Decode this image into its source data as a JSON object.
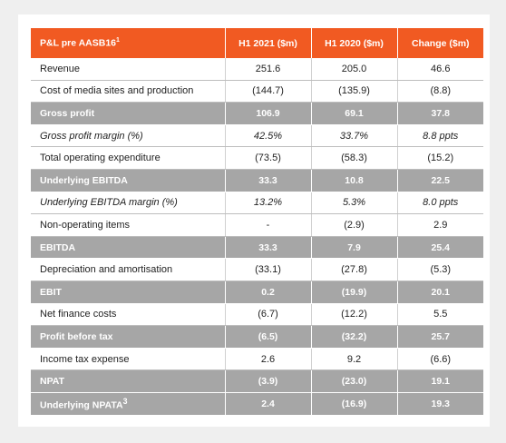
{
  "table": {
    "headers": {
      "label": "P&L pre AASB16",
      "label_sup": "1",
      "col1": "H1 2021 ($m)",
      "col2": "H1 2020 ($m)",
      "col3": "Change ($m)"
    },
    "rows": [
      {
        "label": "Revenue",
        "v1": "251.6",
        "v2": "205.0",
        "v3": "46.6",
        "style": "normal"
      },
      {
        "label": "Cost of media sites and production",
        "v1": "(144.7)",
        "v2": "(135.9)",
        "v3": "(8.8)",
        "style": "normal"
      },
      {
        "label": "Gross profit",
        "v1": "106.9",
        "v2": "69.1",
        "v3": "37.8",
        "style": "shaded"
      },
      {
        "label": "Gross profit margin (%)",
        "v1": "42.5%",
        "v2": "33.7%",
        "v3": "8.8 ppts",
        "style": "italic"
      },
      {
        "label": "Total operating expenditure",
        "v1": "(73.5)",
        "v2": "(58.3)",
        "v3": "(15.2)",
        "style": "normal"
      },
      {
        "label": "Underlying EBITDA",
        "v1": "33.3",
        "v2": "10.8",
        "v3": "22.5",
        "style": "shaded"
      },
      {
        "label": "Underlying EBITDA margin (%)",
        "v1": "13.2%",
        "v2": "5.3%",
        "v3": "8.0 ppts",
        "style": "italic"
      },
      {
        "label": "Non-operating items",
        "v1": "-",
        "v2": "(2.9)",
        "v3": "2.9",
        "style": "normal"
      },
      {
        "label": "EBITDA",
        "v1": "33.3",
        "v2": "7.9",
        "v3": "25.4",
        "style": "shaded"
      },
      {
        "label": "Depreciation and amortisation",
        "v1": "(33.1)",
        "v2": "(27.8)",
        "v3": "(5.3)",
        "style": "normal"
      },
      {
        "label": "EBIT",
        "v1": "0.2",
        "v2": "(19.9)",
        "v3": "20.1",
        "style": "shaded"
      },
      {
        "label": "Net finance costs",
        "v1": "(6.7)",
        "v2": "(12.2)",
        "v3": "5.5",
        "style": "normal"
      },
      {
        "label": "Profit before tax",
        "v1": "(6.5)",
        "v2": "(32.2)",
        "v3": "25.7",
        "style": "shaded"
      },
      {
        "label": "Income tax expense",
        "v1": "2.6",
        "v2": "9.2",
        "v3": "(6.6)",
        "style": "normal"
      },
      {
        "label": "NPAT",
        "v1": "(3.9)",
        "v2": "(23.0)",
        "v3": "19.1",
        "style": "shaded"
      },
      {
        "label": "Underlying NPATA",
        "label_sup": "3",
        "v1": "2.4",
        "v2": "(16.9)",
        "v3": "19.3",
        "style": "shaded"
      }
    ]
  },
  "colors": {
    "header_bg": "#f15a22",
    "shaded_bg": "#a6a6a6",
    "page_bg": "#efefef"
  }
}
